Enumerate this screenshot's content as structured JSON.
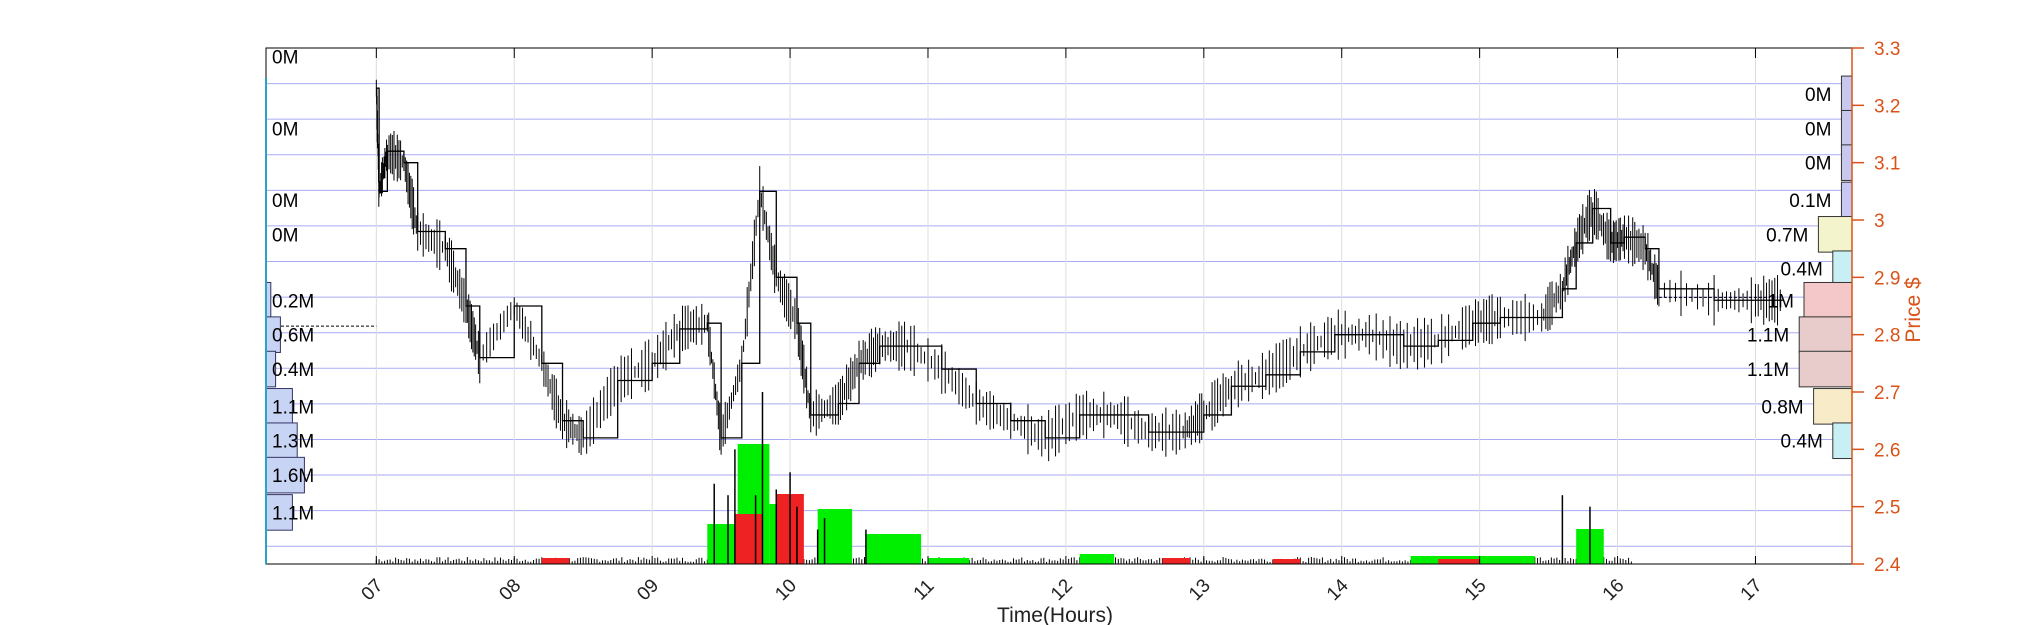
{
  "chart_data": {
    "type": "line",
    "xlabel": "Time(Hours)",
    "ylabel_right": "Price $",
    "xlim": [
      6.2,
      17.7
    ],
    "ylim": [
      2.4,
      3.3
    ],
    "x_tick_labels": [
      "07",
      "08",
      "09",
      "10",
      "11",
      "12",
      "13",
      "14",
      "15",
      "16",
      "17"
    ],
    "x_ticks": [
      7,
      8,
      9,
      10,
      11,
      12,
      13,
      14,
      15,
      16,
      17
    ],
    "y_ticks": [
      2.4,
      2.5,
      2.6,
      2.7,
      2.8,
      2.9,
      3.0,
      3.1,
      3.2,
      3.3
    ],
    "y_tick_labels": [
      "2.4",
      "2.5",
      "2.6",
      "2.7",
      "2.8",
      "2.9",
      "3",
      "3.1",
      "3.2",
      "3.3"
    ],
    "grid": true,
    "colors": {
      "price": "#000000",
      "up_volume": "#00ee00",
      "down_volume": "#ee2222",
      "right_axis": "#d95319",
      "grid_band": "#6666ee",
      "left_axis_accent": "#2aa3c8"
    },
    "price_series": [
      [
        7.0,
        3.23
      ],
      [
        7.02,
        3.05
      ],
      [
        7.08,
        3.12
      ],
      [
        7.2,
        3.1
      ],
      [
        7.3,
        2.98
      ],
      [
        7.5,
        2.95
      ],
      [
        7.65,
        2.85
      ],
      [
        7.75,
        2.76
      ],
      [
        8.0,
        2.85
      ],
      [
        8.2,
        2.75
      ],
      [
        8.35,
        2.65
      ],
      [
        8.5,
        2.62
      ],
      [
        8.75,
        2.72
      ],
      [
        9.0,
        2.75
      ],
      [
        9.2,
        2.81
      ],
      [
        9.4,
        2.82
      ],
      [
        9.5,
        2.62
      ],
      [
        9.65,
        2.75
      ],
      [
        9.78,
        3.05
      ],
      [
        9.9,
        2.9
      ],
      [
        10.05,
        2.82
      ],
      [
        10.15,
        2.66
      ],
      [
        10.35,
        2.68
      ],
      [
        10.5,
        2.75
      ],
      [
        10.65,
        2.78
      ],
      [
        10.85,
        2.78
      ],
      [
        11.1,
        2.74
      ],
      [
        11.35,
        2.68
      ],
      [
        11.6,
        2.65
      ],
      [
        11.85,
        2.62
      ],
      [
        12.1,
        2.66
      ],
      [
        12.35,
        2.66
      ],
      [
        12.6,
        2.63
      ],
      [
        12.85,
        2.63
      ],
      [
        13.0,
        2.66
      ],
      [
        13.2,
        2.71
      ],
      [
        13.45,
        2.73
      ],
      [
        13.7,
        2.77
      ],
      [
        13.95,
        2.8
      ],
      [
        14.2,
        2.8
      ],
      [
        14.45,
        2.78
      ],
      [
        14.7,
        2.79
      ],
      [
        14.95,
        2.82
      ],
      [
        15.15,
        2.83
      ],
      [
        15.45,
        2.83
      ],
      [
        15.6,
        2.88
      ],
      [
        15.7,
        2.96
      ],
      [
        15.82,
        3.02
      ],
      [
        15.95,
        2.96
      ],
      [
        16.05,
        2.97
      ],
      [
        16.2,
        2.95
      ],
      [
        16.3,
        2.88
      ],
      [
        16.7,
        2.86
      ],
      [
        17.0,
        2.86
      ],
      [
        17.2,
        2.86
      ]
    ],
    "volume_spikes_up": [
      [
        9.45,
        0.14
      ],
      [
        9.6,
        0.2
      ],
      [
        9.8,
        0.3
      ],
      [
        10.0,
        0.16
      ],
      [
        10.25,
        0.08
      ],
      [
        10.55,
        0.06
      ],
      [
        15.6,
        0.12
      ],
      [
        15.8,
        0.1
      ]
    ],
    "volume_spikes_down": [
      [
        9.55,
        0.12
      ],
      [
        9.75,
        0.12
      ],
      [
        9.9,
        0.13
      ],
      [
        10.05,
        0.1
      ],
      [
        10.2,
        0.06
      ]
    ],
    "left_profile": {
      "row_labels": [
        "0M",
        "0M",
        "0M",
        "0M",
        "0.2M",
        "0.6M",
        "0.4M",
        "1.1M",
        "1.3M",
        "1.6M",
        "1.1M"
      ],
      "row_prices": [
        3.285,
        3.16,
        3.035,
        2.975,
        2.86,
        2.8,
        2.74,
        2.675,
        2.615,
        2.555,
        2.49
      ],
      "bar_values": [
        0,
        0,
        0,
        0,
        0.2,
        0.6,
        0.4,
        1.1,
        1.3,
        1.6,
        1.1
      ]
    },
    "right_profile": {
      "row_labels": [
        "0M",
        "0M",
        "0M",
        "0.1M",
        "0.7M",
        "0.4M",
        "1M",
        "1.1M",
        "1.1M",
        "0.8M",
        "0.4M"
      ],
      "row_prices": [
        3.22,
        3.16,
        3.1,
        3.035,
        2.975,
        2.915,
        2.86,
        2.8,
        2.74,
        2.675,
        2.615
      ],
      "bar_values": [
        0,
        0,
        0,
        0.1,
        0.7,
        0.4,
        1.0,
        1.1,
        1.1,
        0.8,
        0.4
      ],
      "bar_colors": [
        "#c8c8ee",
        "#c8c8ee",
        "#c8c8ee",
        "#c8c8f4",
        "#f4f4cc",
        "#c8f0f4",
        "#f4c8c8",
        "#e8cccc",
        "#e8cccc",
        "#f8ecc8",
        "#c8f0f4"
      ]
    }
  }
}
